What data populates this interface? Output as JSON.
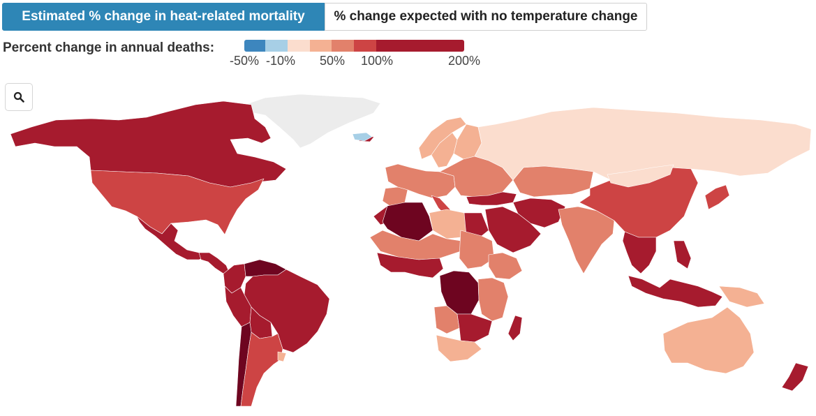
{
  "tabs": {
    "active_label": "Estimated % change in heat-related mortality",
    "inactive_label": "% change expected with no temperature change"
  },
  "legend": {
    "title": "Percent change in annual deaths:",
    "ticks": [
      "-50%",
      "-10%",
      "50%",
      "100%",
      "200%"
    ],
    "bins": [
      {
        "from": -50,
        "to": -25,
        "color": "#3d86be"
      },
      {
        "from": -25,
        "to": -10,
        "color": "#a7cfe6"
      },
      {
        "from": -10,
        "to": 25,
        "color": "#fbddce"
      },
      {
        "from": 25,
        "to": 50,
        "color": "#f4b193"
      },
      {
        "from": 50,
        "to": 75,
        "color": "#e2816b"
      },
      {
        "from": 75,
        "to": 100,
        "color": "#cd4444"
      },
      {
        "from": 100,
        "to": 200,
        "color": "#a61b2e"
      }
    ],
    "darkest_color": "#6e0520",
    "no_data_color": "#ececec"
  },
  "zoom_button": {
    "icon": "search-icon"
  },
  "regions": [
    {
      "name": "Greenland",
      "category": "no-data"
    },
    {
      "name": "Canada",
      "category": "100-200"
    },
    {
      "name": "United States",
      "category": "75-100"
    },
    {
      "name": "Mexico",
      "category": "100-200"
    },
    {
      "name": "Central America",
      "category": "100-200"
    },
    {
      "name": "Venezuela",
      "category": "200+"
    },
    {
      "name": "Colombia",
      "category": "100-200"
    },
    {
      "name": "Brazil",
      "category": "100-200"
    },
    {
      "name": "Peru",
      "category": "100-200"
    },
    {
      "name": "Bolivia",
      "category": "100-200"
    },
    {
      "name": "Chile",
      "category": "200+"
    },
    {
      "name": "Argentina",
      "category": "75-100"
    },
    {
      "name": "Uruguay",
      "category": "25-50"
    },
    {
      "name": "Iceland",
      "category": "-25--10"
    },
    {
      "name": "Norway",
      "category": "25-50"
    },
    {
      "name": "Sweden",
      "category": "25-50"
    },
    {
      "name": "Finland",
      "category": "25-50"
    },
    {
      "name": "Western Europe",
      "category": "50-75"
    },
    {
      "name": "Spain",
      "category": "50-75"
    },
    {
      "name": "Italy",
      "category": "75-100"
    },
    {
      "name": "Eastern Europe",
      "category": "50-75"
    },
    {
      "name": "Russia",
      "category": "-10-25"
    },
    {
      "name": "Kazakhstan",
      "category": "50-75"
    },
    {
      "name": "Turkey",
      "category": "100-200"
    },
    {
      "name": "Iran",
      "category": "100-200"
    },
    {
      "name": "Saudi Arabia",
      "category": "100-200"
    },
    {
      "name": "India",
      "category": "50-75"
    },
    {
      "name": "China",
      "category": "75-100"
    },
    {
      "name": "Mongolia",
      "category": "-10-25"
    },
    {
      "name": "Japan",
      "category": "75-100"
    },
    {
      "name": "Southeast Asia",
      "category": "100-200"
    },
    {
      "name": "Philippines",
      "category": "100-200"
    },
    {
      "name": "Indonesia",
      "category": "100-200"
    },
    {
      "name": "Papua New Guinea",
      "category": "25-50"
    },
    {
      "name": "Australia",
      "category": "25-50"
    },
    {
      "name": "New Zealand",
      "category": "100-200"
    },
    {
      "name": "Algeria",
      "category": "200+"
    },
    {
      "name": "Morocco",
      "category": "100-200"
    },
    {
      "name": "Libya",
      "category": "25-50"
    },
    {
      "name": "Egypt",
      "category": "100-200"
    },
    {
      "name": "Sahel",
      "category": "50-75"
    },
    {
      "name": "West Africa",
      "category": "100-200"
    },
    {
      "name": "Sudan",
      "category": "50-75"
    },
    {
      "name": "Ethiopia",
      "category": "50-75"
    },
    {
      "name": "DR Congo",
      "category": "200+"
    },
    {
      "name": "East Africa",
      "category": "50-75"
    },
    {
      "name": "Angola",
      "category": "50-75"
    },
    {
      "name": "Southern Africa",
      "category": "100-200"
    },
    {
      "name": "South Africa",
      "category": "25-50"
    },
    {
      "name": "Madagascar",
      "category": "100-200"
    }
  ]
}
